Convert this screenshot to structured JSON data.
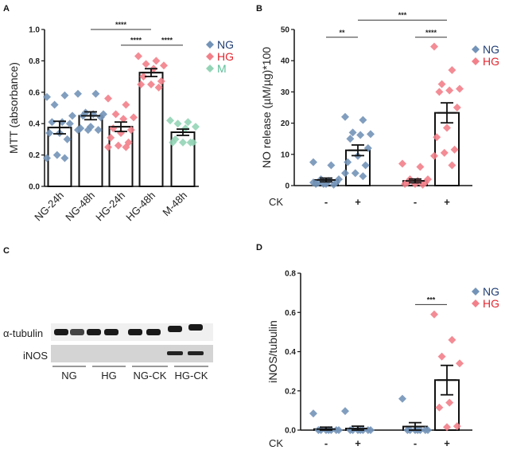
{
  "colors": {
    "NG": "#7393b8",
    "HG": "#f2808a",
    "M": "#93d4b6",
    "NG_text": "#1f3d73",
    "HG_text": "#e3262f",
    "M_text": "#5cbf98"
  },
  "chart_data": [
    {
      "panel": "A",
      "type": "bar",
      "ylabel": "MTT (absorbance)",
      "ylim": [
        0,
        1.0
      ],
      "yticks": [
        "0.0",
        "0.2",
        "0.4",
        "0.6",
        "0.8",
        "1.0"
      ],
      "categories": [
        "NG-24h",
        "NG-48h",
        "HG-24h",
        "HG-48h",
        "M-48h"
      ],
      "groups": [
        "NG",
        "NG",
        "HG",
        "HG",
        "M"
      ],
      "means": [
        0.375,
        0.45,
        0.38,
        0.725,
        0.345
      ],
      "sem": [
        0.04,
        0.025,
        0.03,
        0.025,
        0.02
      ],
      "points": [
        [
          0.57,
          0.58,
          0.52,
          0.45,
          0.41,
          0.41,
          0.4,
          0.34,
          0.34,
          0.3,
          0.2,
          0.18,
          0.18
        ],
        [
          0.59,
          0.59,
          0.47,
          0.46,
          0.46,
          0.45,
          0.44,
          0.38,
          0.37,
          0.36,
          0.36,
          0.36
        ],
        [
          0.56,
          0.52,
          0.46,
          0.44,
          0.43,
          0.37,
          0.36,
          0.34,
          0.31,
          0.28,
          0.26,
          0.25,
          0.25
        ],
        [
          0.83,
          0.8,
          0.78,
          0.77,
          0.75,
          0.7,
          0.67,
          0.65,
          0.65,
          0.63
        ],
        [
          0.42,
          0.41,
          0.4,
          0.38,
          0.37,
          0.3,
          0.28,
          0.28,
          0.28,
          0.28
        ]
      ],
      "significance": [
        {
          "from": 1,
          "to": 3,
          "y": 1.0,
          "label": "****"
        },
        {
          "from": 2,
          "to": 3,
          "y": 0.9,
          "label": "****"
        },
        {
          "from": 3,
          "to": 4,
          "y": 0.9,
          "label": "****"
        }
      ],
      "legend": [
        "NG",
        "HG",
        "M"
      ]
    },
    {
      "panel": "B",
      "type": "bar",
      "ylabel": "NO release (µM/µg)*100",
      "ylim": [
        0,
        50
      ],
      "yticks": [
        "0",
        "10",
        "20",
        "30",
        "40",
        "50"
      ],
      "row_label": "CK",
      "categories": [
        "-",
        "+",
        "-",
        "+"
      ],
      "groups": [
        "NG",
        "NG",
        "HG",
        "HG"
      ],
      "means": [
        1.8,
        11.3,
        1.5,
        23.3
      ],
      "sem": [
        0.6,
        1.7,
        0.6,
        3.2
      ],
      "points": [
        [
          7.5,
          6.5,
          2,
          2,
          1.5,
          1,
          1,
          0.5,
          0.5,
          0.3,
          0.5,
          1
        ],
        [
          22,
          21,
          17,
          16.5,
          16.2,
          15,
          12,
          9.5,
          7.5,
          6.5,
          4,
          4,
          3
        ],
        [
          7,
          6,
          2,
          2,
          1.5,
          1,
          1,
          0.5,
          0.5,
          0.3
        ],
        [
          44.5,
          37,
          32.5,
          31,
          30.5,
          30,
          25,
          18.5,
          15.5,
          11.5,
          10.5,
          9.5,
          6.5
        ]
      ],
      "significance": [
        {
          "from": 0,
          "to": 1,
          "y": 47.5,
          "label": "**"
        },
        {
          "from": 1,
          "to": 3,
          "y": 53,
          "label": "***"
        },
        {
          "from": 2,
          "to": 3,
          "y": 47.5,
          "label": "****"
        }
      ],
      "legend": [
        "NG",
        "HG"
      ]
    },
    {
      "panel": "D",
      "type": "bar",
      "ylabel": "iNOS/tubulin",
      "ylim": [
        0,
        0.8
      ],
      "yticks": [
        "0.0",
        "0.2",
        "0.4",
        "0.6",
        "0.8"
      ],
      "row_label": "CK",
      "categories": [
        "-",
        "+",
        "-",
        "+"
      ],
      "groups": [
        "NG",
        "NG",
        "NG",
        "HG"
      ],
      "means": [
        0.005,
        0.008,
        0.018,
        0.255
      ],
      "sem": [
        0.01,
        0.012,
        0.02,
        0.075
      ],
      "points": [
        [
          0.085,
          0,
          0,
          0,
          0,
          0,
          0,
          0
        ],
        [
          0.097,
          0,
          0,
          0,
          0,
          0,
          0,
          0
        ],
        [
          0.16,
          0,
          0,
          0,
          0,
          0,
          0,
          0
        ],
        [
          0.59,
          0.46,
          0.375,
          0.34,
          0.14,
          0.115,
          0.02,
          0.015
        ]
      ],
      "significance": [
        {
          "from": 2,
          "to": 3,
          "y": 0.64,
          "label": "***"
        }
      ],
      "legend": [
        "NG",
        "HG"
      ]
    }
  ],
  "blot": {
    "panel": "C",
    "rows": [
      "α-tubulin",
      "iNOS"
    ],
    "groups": [
      "NG",
      "HG",
      "NG-CK",
      "HG-CK"
    ],
    "inos_band_lanes": [
      false,
      false,
      false,
      false,
      false,
      false,
      true,
      true
    ]
  }
}
